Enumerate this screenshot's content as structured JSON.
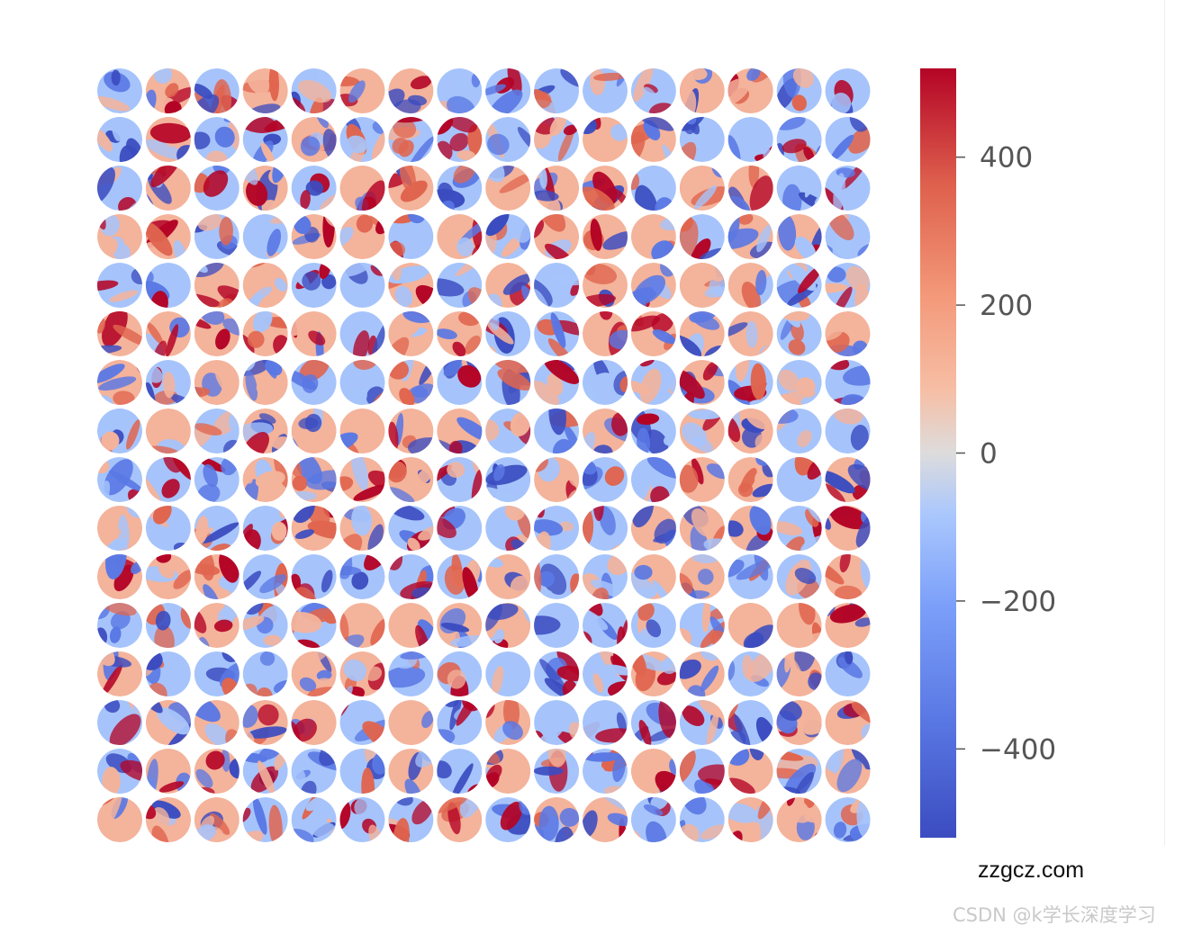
{
  "chart_data": {
    "type": "heatmap",
    "description_layout": "16x16 grid of circular topographic maps",
    "rows": 16,
    "cols": 16,
    "colormap": "coolwarm",
    "colorbar": {
      "vmin": -520,
      "vmax": 520,
      "ticks": [
        400,
        200,
        0,
        -200,
        -400
      ],
      "tick_labels": [
        "400",
        "200",
        "0",
        "−200",
        "−400"
      ]
    },
    "axes": "off",
    "grid": false
  },
  "watermark": {
    "site": "zzgcz.com",
    "csdn": "CSDN @k学长深度学习"
  }
}
